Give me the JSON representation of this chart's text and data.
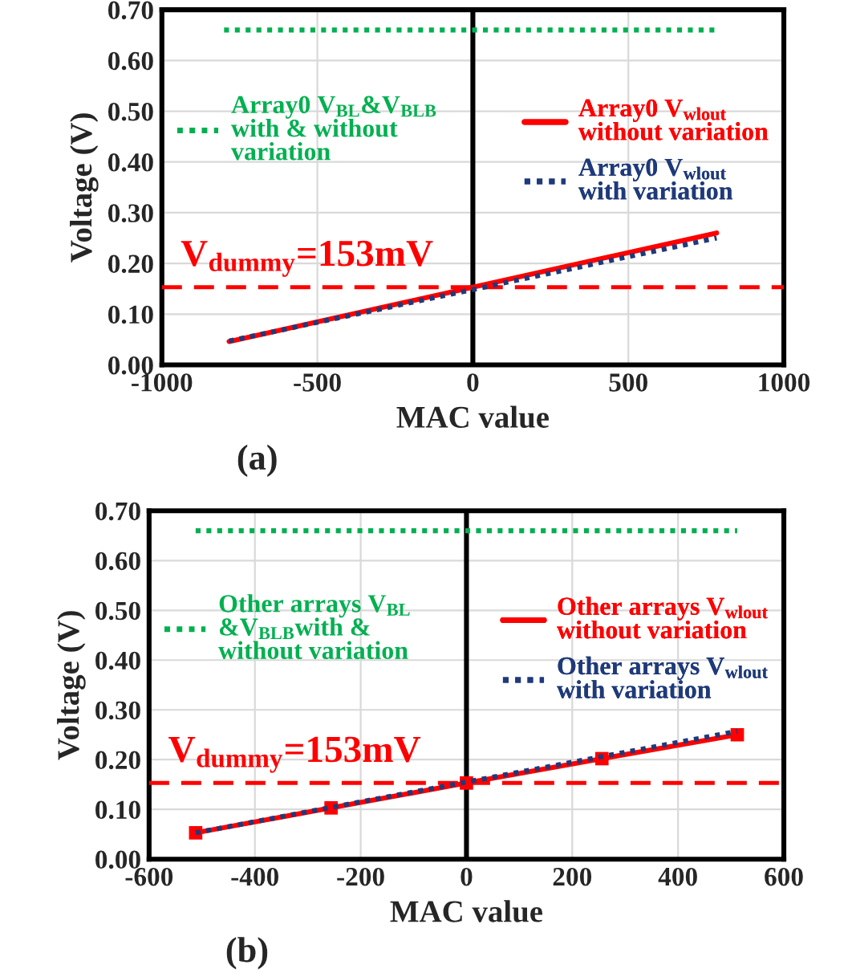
{
  "chart_data": [
    {
      "type": "line",
      "xlabel": "MAC value",
      "ylabel": "Voltage (V)",
      "annotations": [
        "(a)"
      ],
      "xlim": [
        -1000,
        1000
      ],
      "xticks": [
        -1000,
        -500,
        0,
        500,
        1000
      ],
      "ylim": [
        0,
        0.7
      ],
      "yticks": [
        {
          "value": 0,
          "label": "0.00"
        },
        {
          "value": 0.1,
          "label": "0.10"
        },
        {
          "value": 0.2,
          "label": "0.20"
        },
        {
          "value": 0.3,
          "label": "0.30"
        },
        {
          "value": 0.4,
          "label": "0.40"
        },
        {
          "value": 0.5,
          "label": "0.50"
        },
        {
          "value": 0.6,
          "label": "0.60"
        },
        {
          "value": 0.7,
          "label": "0.70"
        }
      ],
      "grid": true,
      "legend": "center",
      "series": [
        {
          "name": "Array0 V$_{BL}$&V$_{BLB}$\nwith & without\nvariation",
          "color": "#00b050",
          "line_style": "dotted",
          "x": [
            -800,
            790
          ],
          "values": [
            0.66,
            0.66
          ]
        },
        {
          "name": "Array0 V$_{wlout}$\nwithout variation",
          "color": "#ff0000",
          "line_style": "solid",
          "x": [
            -784,
            784
          ],
          "values": [
            0.046,
            0.26
          ]
        },
        {
          "name": "Array0 V$_{wlout}$\nwith variation",
          "color": "#1f3a7a",
          "line_style": "dotted",
          "x": [
            -784,
            784
          ],
          "values": [
            0.047,
            0.25
          ]
        }
      ],
      "ref_lines": [
        {
          "axis": "y",
          "value": 0.153,
          "label": "V$_{dummy}$=153mV",
          "color": "#ff0000",
          "line_style": "dashed"
        },
        {
          "axis": "x",
          "value": 0,
          "color": "#000000",
          "line_style": "solid"
        }
      ]
    },
    {
      "type": "line",
      "xlabel": "MAC value",
      "ylabel": "Voltage (V)",
      "annotations": [
        "(b)"
      ],
      "xlim": [
        -600,
        600
      ],
      "xticks": [
        -600,
        -400,
        -200,
        0,
        200,
        400,
        600
      ],
      "ylim": [
        0,
        0.7
      ],
      "yticks": [
        {
          "value": 0,
          "label": "0.00"
        },
        {
          "value": 0.1,
          "label": "0.10"
        },
        {
          "value": 0.2,
          "label": "0.20"
        },
        {
          "value": 0.3,
          "label": "0.30"
        },
        {
          "value": 0.4,
          "label": "0.40"
        },
        {
          "value": 0.5,
          "label": "0.50"
        },
        {
          "value": 0.6,
          "label": "0.60"
        },
        {
          "value": 0.7,
          "label": "0.70"
        }
      ],
      "grid": true,
      "legend": "center",
      "series": [
        {
          "name": "Other arrays V$_{BL}$\n&V$_{BLB}$with &\nwithout variation",
          "color": "#00b050",
          "line_style": "dotted",
          "x": [
            -512,
            512
          ],
          "values": [
            0.66,
            0.66
          ]
        },
        {
          "name": "Other arrays V$_{wlout}$\nwithout variation",
          "color": "#ff0000",
          "line_style": "solid",
          "marker": "square",
          "x": [
            -512,
            -256,
            0,
            256,
            512
          ],
          "values": [
            0.053,
            0.103,
            0.153,
            0.202,
            0.25
          ]
        },
        {
          "name": "Other arrays V$_{wlout}$\nwith variation",
          "color": "#1f3a7a",
          "line_style": "dotted",
          "x": [
            -512,
            512
          ],
          "values": [
            0.053,
            0.257
          ]
        }
      ],
      "ref_lines": [
        {
          "axis": "y",
          "value": 0.153,
          "label": "V$_{dummy}$=153mV",
          "color": "#ff0000",
          "line_style": "dashed"
        },
        {
          "axis": "x",
          "value": 0,
          "color": "#000000",
          "line_style": "solid"
        }
      ]
    }
  ]
}
